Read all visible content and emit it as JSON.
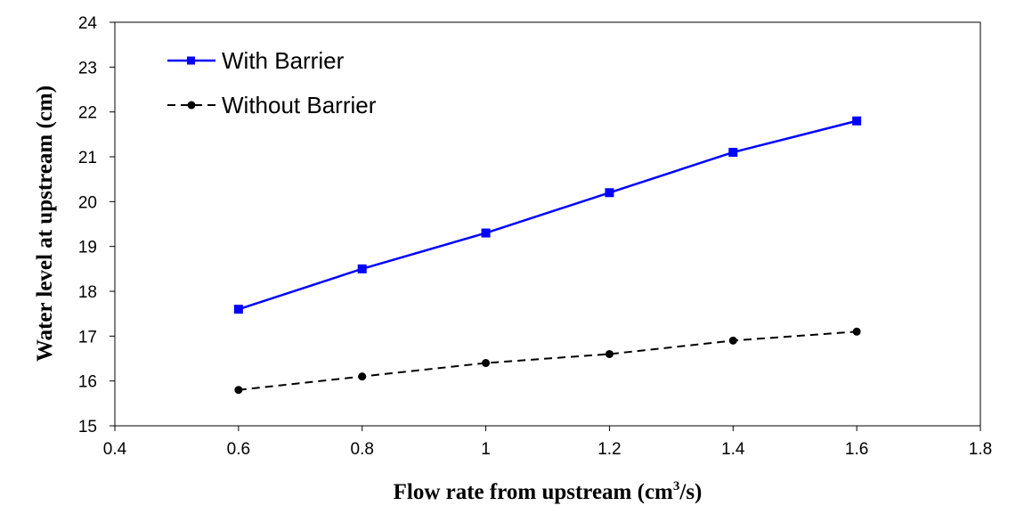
{
  "chart_data": {
    "type": "line",
    "title": "",
    "xlabel": "Flow rate from upstream (cm",
    "xlabel_sup": "3",
    "xlabel_suffix": "/s)",
    "ylabel": "Water level at upstream (cm)",
    "xlim": [
      0.4,
      1.8
    ],
    "ylim": [
      15,
      24
    ],
    "xticks": [
      0.4,
      0.6,
      0.8,
      1.0,
      1.2,
      1.4,
      1.6,
      1.8
    ],
    "xtick_labels": [
      "0.4",
      "0.6",
      "0.8",
      "1",
      "1.2",
      "1.4",
      "1.6",
      "1.8"
    ],
    "yticks": [
      15,
      16,
      17,
      18,
      19,
      20,
      21,
      22,
      23,
      24
    ],
    "ytick_labels": [
      "15",
      "16",
      "17",
      "18",
      "19",
      "20",
      "21",
      "22",
      "23",
      "24"
    ],
    "grid": false,
    "legend_position": "top-left",
    "series": [
      {
        "name": "With Barrier",
        "color": "#0000ff",
        "marker": "square",
        "line_style": "solid",
        "x": [
          0.6,
          0.8,
          1.0,
          1.2,
          1.4,
          1.6
        ],
        "y": [
          17.6,
          18.5,
          19.3,
          20.2,
          21.1,
          21.8
        ]
      },
      {
        "name": "Without Barrier",
        "color": "#000000",
        "marker": "circle",
        "line_style": "dashed",
        "x": [
          0.6,
          0.8,
          1.0,
          1.2,
          1.4,
          1.6
        ],
        "y": [
          15.8,
          16.1,
          16.4,
          16.6,
          16.9,
          17.1
        ]
      }
    ]
  }
}
